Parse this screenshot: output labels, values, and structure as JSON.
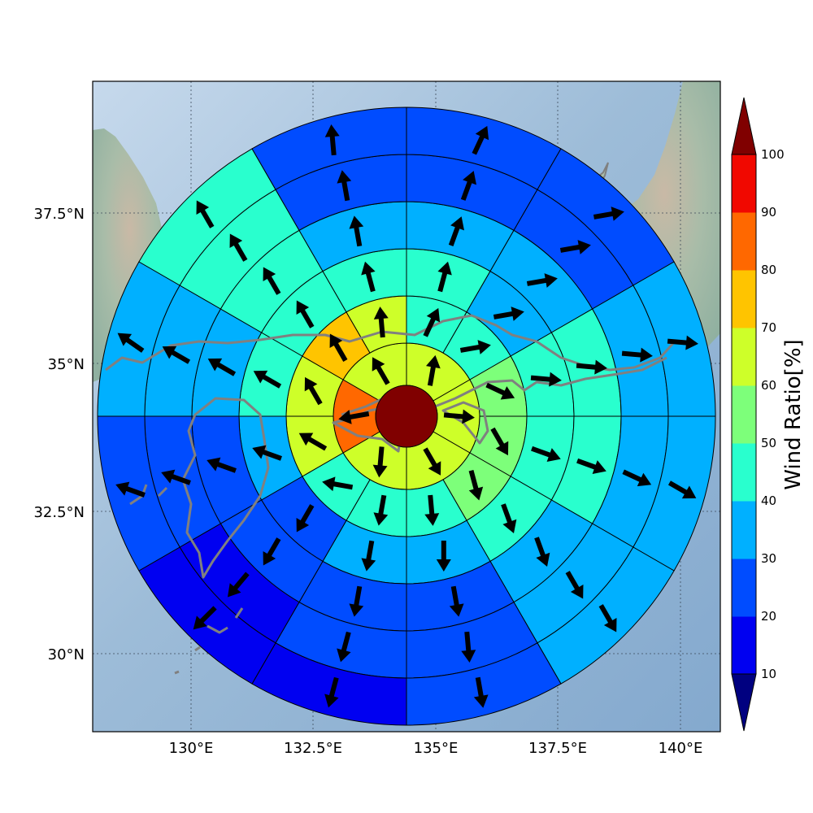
{
  "map": {
    "lon_ticks": [
      "130°E",
      "132.5°E",
      "135°E",
      "137.5°E",
      "140°E"
    ],
    "lat_ticks": [
      "30°N",
      "32.5°N",
      "35°N",
      "37.5°N"
    ],
    "grid": true,
    "basemap": "shaded-relief",
    "coastline_color": "#808080",
    "center_color": "#800000"
  },
  "colorbar": {
    "label": "Wind Ratio[%]",
    "ticks": [
      "10",
      "20",
      "30",
      "40",
      "50",
      "60",
      "70",
      "80",
      "90",
      "100"
    ],
    "under_color": "#000080",
    "over_color": "#800000",
    "bins": [
      {
        "range": [
          10,
          20
        ],
        "color": "#0000f1"
      },
      {
        "range": [
          20,
          30
        ],
        "color": "#004cff"
      },
      {
        "range": [
          30,
          40
        ],
        "color": "#00b0ff"
      },
      {
        "range": [
          40,
          50
        ],
        "color": "#29ffce"
      },
      {
        "range": [
          50,
          60
        ],
        "color": "#7dff7a"
      },
      {
        "range": [
          60,
          70
        ],
        "color": "#ceff29"
      },
      {
        "range": [
          70,
          80
        ],
        "color": "#ffc400"
      },
      {
        "range": [
          80,
          90
        ],
        "color": "#ff6800"
      },
      {
        "range": [
          90,
          100
        ],
        "color": "#f10800"
      }
    ]
  },
  "chart_data": {
    "type": "polar-sector-wind-ratio",
    "units": "%",
    "rings": [
      {
        "ring": 1,
        "sector_deg": 60,
        "ratio": [
          60,
          60,
          60,
          60,
          80,
          60
        ],
        "wind_dir_deg": [
          10,
          95,
          150,
          185,
          260,
          330
        ]
      },
      {
        "ring": 2,
        "sector_deg": 30,
        "ratio": [
          40,
          40,
          50,
          50,
          50,
          40,
          40,
          40,
          60,
          60,
          70,
          60
        ],
        "wind_dir_deg": [
          25,
          80,
          115,
          150,
          165,
          175,
          190,
          280,
          300,
          330,
          330,
          355
        ]
      },
      {
        "ring": 3,
        "sector_deg": 30,
        "ratio": [
          40,
          30,
          40,
          40,
          40,
          30,
          30,
          20,
          30,
          40,
          40,
          40
        ],
        "wind_dir_deg": [
          15,
          80,
          95,
          110,
          160,
          180,
          190,
          210,
          290,
          300,
          330,
          345
        ]
      },
      {
        "ring": 4,
        "sector_deg": 30,
        "ratio": [
          30,
          30,
          40,
          40,
          30,
          20,
          20,
          20,
          20,
          30,
          40,
          30
        ],
        "wind_dir_deg": [
          20,
          80,
          95,
          110,
          160,
          170,
          190,
          210,
          290,
          300,
          330,
          350
        ]
      },
      {
        "ring": 5,
        "sector_deg": 30,
        "ratio": [
          20,
          20,
          30,
          30,
          30,
          20,
          20,
          10,
          20,
          30,
          40,
          20
        ],
        "wind_dir_deg": [
          20,
          80,
          95,
          115,
          150,
          175,
          195,
          220,
          290,
          300,
          330,
          350
        ]
      },
      {
        "ring": 6,
        "sector_deg": 30,
        "ratio": [
          20,
          20,
          30,
          30,
          30,
          20,
          10,
          10,
          20,
          30,
          40,
          20
        ],
        "wind_dir_deg": [
          25,
          80,
          95,
          120,
          150,
          170,
          195,
          225,
          290,
          305,
          330,
          355
        ]
      }
    ]
  }
}
